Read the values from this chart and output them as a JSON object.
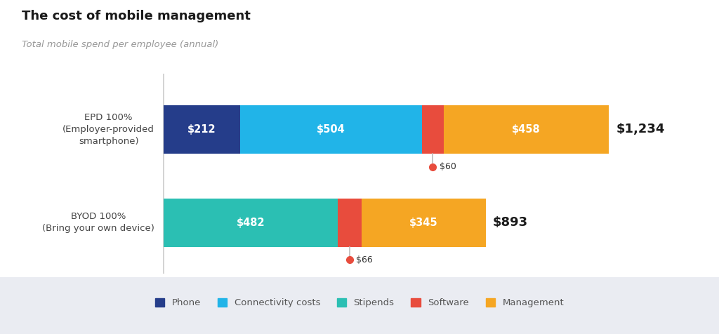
{
  "title": "The cost of mobile management",
  "subtitle": "Total mobile spend per employee (annual)",
  "background_color": "#ffffff",
  "legend_background": "#eaecf2",
  "bars": [
    {
      "label": "EPD 100%\n(Employer-provided\nsmartphone)",
      "segments": [
        {
          "name": "Phone",
          "value": 212,
          "color": "#253d8a"
        },
        {
          "name": "Connectivity costs",
          "value": 504,
          "color": "#21b4e8"
        },
        {
          "name": "Software",
          "value": 60,
          "color": "#e84c3d"
        },
        {
          "name": "Management",
          "value": 458,
          "color": "#f5a623"
        }
      ],
      "total_label": "$1,234",
      "total": 1234,
      "drop_label": "$60",
      "drop_value": 60
    },
    {
      "label": "BYOD 100%\n(Bring your own device)",
      "segments": [
        {
          "name": "Stipends",
          "value": 482,
          "color": "#2bbfb3"
        },
        {
          "name": "Software",
          "value": 66,
          "color": "#e84c3d"
        },
        {
          "name": "Management",
          "value": 345,
          "color": "#f5a623"
        }
      ],
      "total_label": "$893",
      "total": 893,
      "drop_label": "$66",
      "drop_value": 66
    }
  ],
  "legend_items": [
    {
      "name": "Phone",
      "color": "#253d8a"
    },
    {
      "name": "Connectivity costs",
      "color": "#21b4e8"
    },
    {
      "name": "Stipends",
      "color": "#2bbfb3"
    },
    {
      "name": "Software",
      "color": "#e84c3d"
    },
    {
      "name": "Management",
      "color": "#f5a623"
    }
  ]
}
